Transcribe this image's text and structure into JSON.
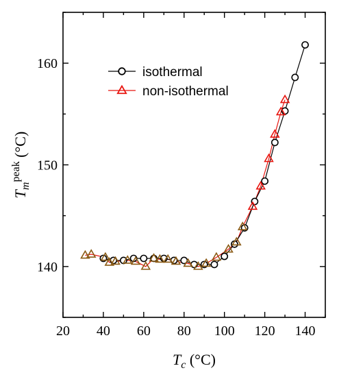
{
  "chart_data": {
    "type": "line",
    "xlabel": {
      "main": "T",
      "sub": "c",
      "unit": " (°C)"
    },
    "ylabel": {
      "main": "T",
      "sub": "m",
      "sup": "peak",
      "unit": " (°C)"
    },
    "xlim": [
      20,
      150
    ],
    "ylim": [
      135,
      165
    ],
    "xticks": [
      20,
      40,
      60,
      80,
      100,
      120,
      140
    ],
    "yticks": [
      140,
      150,
      160
    ],
    "grid": false,
    "legend_position": "top-left",
    "series": [
      {
        "name": "isothermal",
        "marker": "circle",
        "color": "#000000",
        "x": [
          40,
          45,
          50,
          55,
          60,
          65,
          70,
          75,
          80,
          85,
          90,
          95,
          100,
          105,
          110,
          115,
          120,
          125,
          130,
          135,
          140
        ],
        "y": [
          140.8,
          140.6,
          140.6,
          140.8,
          140.8,
          140.8,
          140.8,
          140.6,
          140.6,
          140.2,
          140.2,
          140.2,
          141.0,
          142.2,
          143.8,
          146.4,
          148.4,
          152.2,
          155.3,
          158.6,
          161.8
        ]
      },
      {
        "name": "non-isothermal",
        "marker": "triangle",
        "color": "#e8150f",
        "x": [
          31,
          34,
          41,
          43,
          46,
          52,
          56,
          61,
          65,
          68,
          72,
          76,
          82,
          87,
          91,
          96,
          102,
          106,
          109,
          114,
          118,
          122,
          125,
          128,
          130
        ],
        "y": [
          141.1,
          141.2,
          140.9,
          140.4,
          140.5,
          140.6,
          140.5,
          140.0,
          140.8,
          140.7,
          140.7,
          140.5,
          140.3,
          140.0,
          140.3,
          140.9,
          141.7,
          142.4,
          143.9,
          145.9,
          147.9,
          150.6,
          153.0,
          155.2,
          156.4
        ]
      }
    ]
  }
}
